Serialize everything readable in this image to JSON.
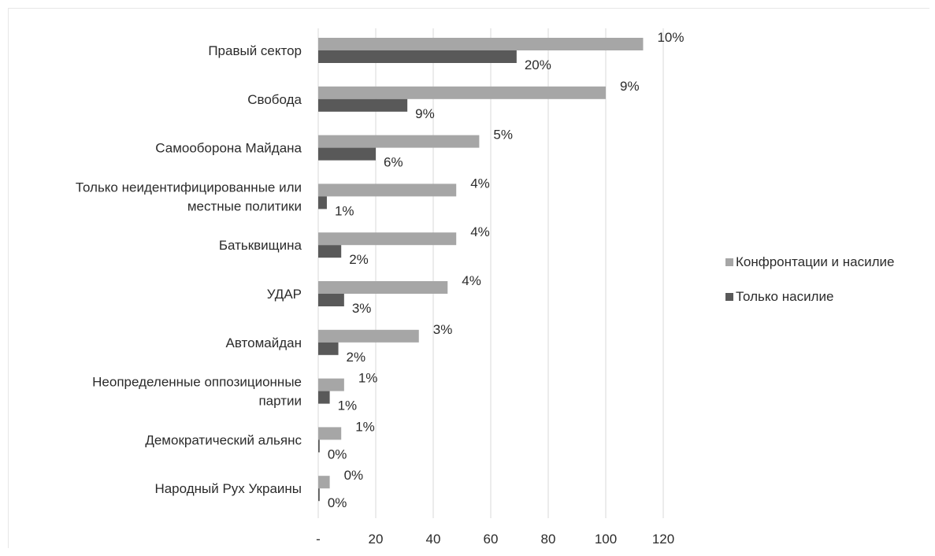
{
  "chart_data": {
    "type": "bar",
    "orientation": "horizontal",
    "title": "",
    "xlabel": "",
    "ylabel": "",
    "categories": [
      [
        "Правый сектор"
      ],
      [
        "Свобода"
      ],
      [
        "Самооборона Майдана"
      ],
      [
        "Только неидентифицированные или",
        "местные политики"
      ],
      [
        "Батьквищина"
      ],
      [
        "УДАР"
      ],
      [
        "Автомайдан"
      ],
      [
        "Неопределенные оппозиционные",
        "партии"
      ],
      [
        "Демократический альянс"
      ],
      [
        "Народный Рух Украины"
      ]
    ],
    "series": [
      {
        "name": "Конфронтации и насилие",
        "color": "#a6a6a6",
        "values": [
          113,
          100,
          56,
          48,
          48,
          45,
          35,
          9,
          8,
          4
        ],
        "labels": [
          "10%",
          "9%",
          "5%",
          "4%",
          "4%",
          "4%",
          "3%",
          "1%",
          "1%",
          "0%"
        ]
      },
      {
        "name": "Только насилие",
        "color": "#595959",
        "values": [
          69,
          31,
          20,
          3,
          8,
          9,
          7,
          4,
          0.5,
          0.5
        ],
        "labels": [
          "20%",
          "9%",
          "6%",
          "1%",
          "2%",
          "3%",
          "2%",
          "1%",
          "0%",
          "0%"
        ]
      }
    ],
    "xlim": [
      0,
      120
    ],
    "xticks": [
      {
        "value": 0,
        "label": "-"
      },
      {
        "value": 20,
        "label": "20"
      },
      {
        "value": 40,
        "label": "40"
      },
      {
        "value": 60,
        "label": "60"
      },
      {
        "value": 80,
        "label": "80"
      },
      {
        "value": 100,
        "label": "100"
      },
      {
        "value": 120,
        "label": "120"
      }
    ],
    "grid": true,
    "legend": "right"
  }
}
